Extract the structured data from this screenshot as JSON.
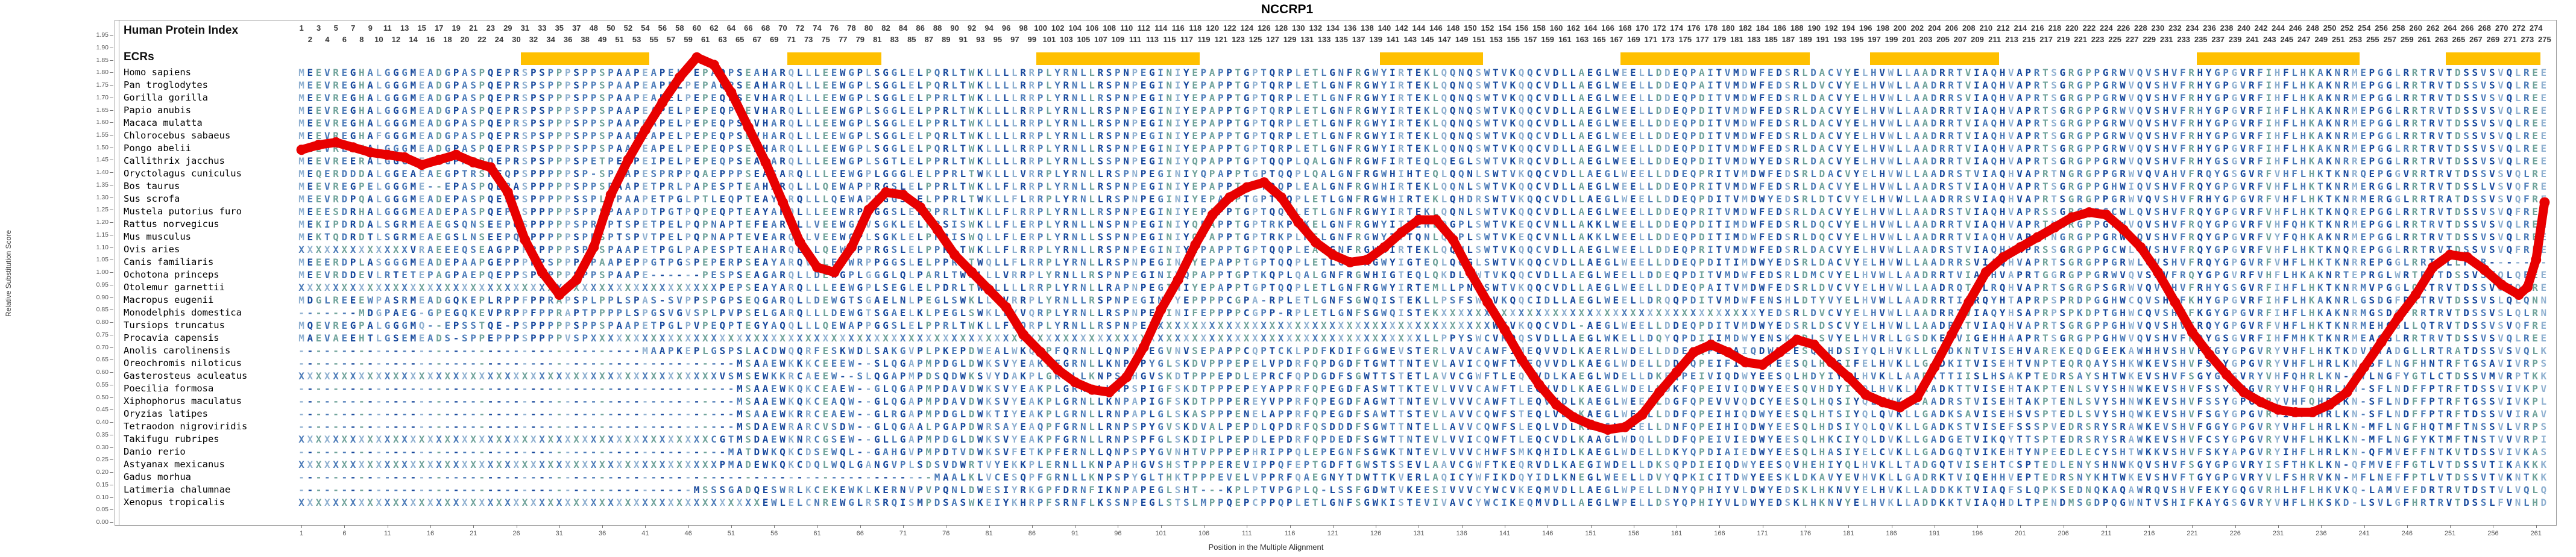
{
  "title": "NCCRP1",
  "labels": {
    "human_protein_index": "Human Protein Index",
    "ecrs": "ECRs",
    "y_axis": "Relative Substitution Score",
    "x_axis": "Position in the Multiple Alignment"
  },
  "ruler": {
    "index_segments": [
      [
        1,
        24
      ],
      [
        29,
        38
      ],
      [
        48,
        275
      ]
    ]
  },
  "ecr_regions_cols": [
    [
      27,
      41
    ],
    [
      58,
      68
    ],
    [
      87,
      105
    ],
    [
      127,
      138
    ],
    [
      155,
      176
    ],
    [
      184,
      198
    ],
    [
      222,
      240
    ],
    [
      251,
      261
    ]
  ],
  "colors": {
    "ecr_bar": "#FFC000",
    "curve": "#E80000",
    "residue_palette": [
      "#17489C",
      "#4C7BB8",
      "#8FB0D0",
      "#6FA29A"
    ],
    "ruler_text": "#3A3A3A",
    "axis_text": "#555555",
    "border": "#9A9A9A"
  },
  "species": [
    {
      "name": "Homo sapiens",
      "seq": "MEEVREGHALGGGMEADGPASPQEPRSPSPPPSPPSPAAPEAPELPEPAQPSEAHARQLLLEEWGPLSGGLELPQRLTWKLLLLRRPLYRNLLRSPNPEGINIYEPAPPTGPTQRPLETLGNFRGWYIRTEKLQQNQSWTVKQQCVDLLAEGLWEELLDDEQPAITVMDWFEDSRLDACVYELHVWLLAADRRTVIAQHVAPRTSGRGPPGRWVQVSHVFRHYGPGVRFIHFLHKAKNRMEPGGLRRTRVTDSSVSVQLREE"
    },
    {
      "name": "Pan troglodytes",
      "seq": "MEEVREGHALGGGMEADGPASPQEPRSPSPPPSPPSPAAPEAPELPEPAQPSEAHARQLLLEEWGPLSGGLELPQRLTWKLLLLRRPLYRNLLRSPNPEGINIYEPAPPTGPTQRPLETLGNFRGWYIRTEKLQQNQSWTVKQQCVDLLAEGLWEELLDDEQPAITVMDWFEDSRLDVCVYELHVWLLAADRRTVIAQHVAPRTSGRGPPGRWVQVSHVFRHYGPGVRFIHFLHKAKNRMEPGGLRRTRVTDSSVSVQLREE"
    },
    {
      "name": "Gorilla gorilla",
      "seq": "MEEVREGHALGGGMEADGPASPQEPRSPSPPPSPPSPAAPEAPELPEPEQPSEVHARQLLLEEWGPLSGGLELPPRLTWKLLLLRRPLYRNLLRSPNPEGINIYEPAPPTGPTQRPLETLGNFRGWYIRTEKLQQNQSWTVKQQCVDLLAEGLWEELLDDEQPDITVMDWFEDSRLDACVYELHVWLLAADRRSVIAQHVAPRTSGRGPPGRWVQVSHVFRHYGPGVRFIHFLHKAKNRMEPGGLRRTRVTDSSVSVQLREE"
    },
    {
      "name": "Papio anubis",
      "seq": "MEEVREGHALGGGMEADGPASPQEPRSPSPPPSPPSPAAPEAPELPEPEQPSEVHARQLLLEEWGPLSGGLELPPRLTWKLLLLRRPLYRNLLRSPNPEGINIYEPAPPTGPTQRPLETLGNFRGWYIRTEKLQQNQSWTVKQQCVDLLAEGLWEELLDDEQPDITVMDWFEDSRLDACVYELHVWLLAADRRTVIAQHVAPRTSGRGPPGRWVQVSHVFRHYGPGVRFIHFLHKAKNRMEPGGLRRTRVTDSSVSVQLREE"
    },
    {
      "name": "Macaca mulatta",
      "seq": "MEEVREGHALGGGMEADGPASPQEPRSPSPPPSPPSPAAPEAPELPEPEQPSEVHARQLLLEEWGPLSGGLELPPRLTWKLLLLRRPLYRNLLRSPNPEGINIYEPAPPTGPTQRPLETLGNFRGWYIRTEKLQQNQSWTVKQQCVDLLAEGLWEELLDDEQPDITVMDWFEDSRLDACVYELHVWLLAADRRTVIAQHVAPRTSGRGPPGRWVQVSHVFRHYGPGVRFIHFLHKAKNRMEPGGLRRTRVTDSSVSVQLREE"
    },
    {
      "name": "Chlorocebus sabaeus",
      "seq": "MEEVREGHAFGGGMEADGPASPQEPRSPSPPPSPPSPAAPEAPELPEPEQPSEVHARQLLLEEWGPLSGGLELPQRLTWKLLLLRRPLYRNLLRSPNPEGINIYEPAPPTGPTQRPLETLGNFRGWYIRTEKLQQNQSWTVKQQCVDLLAEGLWEELLDDEQPDITVMDWFEDSRLDACVYELHVWLLAADRRTVIAQHVAPRTSGRGPPGRWVQVSHVFRHYGPGVRFIHFLHKAKNRMEPGGLRRTRVTDSSVSVQLREE"
    },
    {
      "name": "Pongo abelii",
      "seq": "MEEVREGHALGGGMEADGPASPQEPRSPSPPPSPPSPAAPEAPELPEPEQPSEAHARQLLLEEWGPLSGGLELPQRLTWKLLLLRRPLYRNLLRSPNPEGINIYEPAPPTGPTQRPLETLGNFRGWYIRTEKLQQNQSWTVKQQCVDLLAEGLWEELLDDEQPDITVMDWFEDSRLDACVYELHVWLLAADRRTVIAQHVAPRTSGRGPPGRWVQVSHVFRHYGPGVRFIHFLHKAKNRMEPGGLRRTRVTDSSVSVQLREE"
    },
    {
      "name": "Callithrix jacchus",
      "seq": "MEEVREERALGGGMEADGPANPQEPRSPSPPPSPETPEIPEIPELPEPEQPSEAHARQLLLEEWGPLSGTLELPPRLTWKLLLLRRPLYRNLLSSPNPEGINIYQPAPPTGPTQQPLQALGNFRGWFIRTEQLQEGLSWTVKRQCVDLLAEGLWEELLDDEQPDITVMDWYEDSRLDACVYELHVWLLAADRRTVIAQHVAPRTSGRGPPGRWVQVSHVFRHYGSGVRFIHFLHKAKNRREPGGLRRTRVTDSSVSVQLREE"
    },
    {
      "name": "Oryctolagus cuniculus",
      "seq": "MEQERDDDALGGEAEAEGPTRSPEQPSPPPPPSP-SPAAPESPRPPQAEPPPSEASARQLLLEEWGPLGGGLELPPRLTWKLLLVRRPLYRNLLRSPNPEGINIYQPAPPTGPTQQPLQALGNFRGWHIHTEQLQQNLSWTVKQQCVDLLAEGLWEELLDDEQPRITVMDWFEDSRLDACVYELHVWLLAADRSTVIAQHVAPRTNGRGPPGRWVQVAHVFRQYGSGVRFVHFLHKTKNRQEPGGVRRTRVTDSSVSVQLRE"
    },
    {
      "name": "Bos taurus",
      "seq": "MEEVREGPELGGGME--EPASPQEPASPPPPPSPPSPAAPETPRLPAPESPTEAHARQLLLQEWAPPRGSLELPPRLTWKLLFLRRPLYRNLLRSPNPEGINIYEPAPPTGPTQQPLEALGNFRGWHIRTEKLQQNLSWTVKQQCVDLLAEGLWEELLDDEQPRITVMDWFEDSRLDACVYELHVWLLAADRSTVIAQHVAPRTSGRGPPGHWIQVSHVFRQYGPGVRFVHFLHKTKNRMERGGLRRTRVTDSSLVSVQFRE"
    },
    {
      "name": "Sus scrofa",
      "seq": "MEEVRDPQALGGGMEADEPASPQEPPSPPPPPSSPLAPAAPETPGLPTLEQPTEAYARQLLLQEWAPPGGSLELPPRLTWKLLFLRRPLYRNLLRSPNPEGINIYEPAPPTGPTQQPLETLGNFRGWHIRTEKLQHDRSWTVKQQCVDLLAEGLWEELLDDEQPDITVMDWYEDSRLDTCVYELHVWLLAADRRSVIAQHVAPRTSGRGPPGRWVQVSHVFRHYGPGVRFVHFLHKTKNRMERGGLRRTRATDSSVSVQFRE"
    },
    {
      "name": "Mustela putorius furo",
      "seq": "MEEESDRHALGGGMEADEPASPQEPPSPPPPPSPPSPAAPDTPGTPQPEQPTEAYARQLLLEEWRPPGGSLELPPRLTWKLLFLRRPLYRNLLRSPNPEGINIYEPAPPTGPTQQPLETLGNFRGWYIRTEKLQQNLSWTVKQQCVDLLAEGLWEELLDDEQPRITVMDWFEDSRLDACVYELHVWLLAADRSTVIAQHVAPRSSGRGPPGCWLQVSHVFRQYGPGVRFVHFLHKTKNQREPGGLRRTRVTDSSVSVQFRE"
    },
    {
      "name": "Rattus norvegicus",
      "seq": "MEKIPDRDALSGRMEAEGSQNSEEPQSPPPPPSPRSPTSPETPELPQPNAPTEFEARQLLVEEWGPVSGKLELPPSISWKLLFLERPLYRNLLNSPNPEGINIYQPAPPTGPTRKPLKELGNFRGWYITTENLQGPLSWTVKEQCVNLLAKKLWEELLDDEQPDITIMDWFEDSRLDQCVYELHVWLLAADRRTVIAQHVAPRTNGRGPPGRWVQVSHVFRQYGPGVRFVHFQHKTKNRMEPGGLRRTRVTDSSVSVQLRE"
    },
    {
      "name": "Mus musculus",
      "seq": "MEKTQDRDTLSGRMEAEGSLNSEEPQSPPPPPSPRSPTSPVTPELPQPNAPTEVEARQLLVEEWGPLSGKLELPPRISWQLLFLERPLYRNLLSSPNPEGINIYQPAPPTGPTRKPLKELGNFRGWYITTQNLQGPLSWTVKEQCVNLLAKKLWEELLDDEQPDITIMDWFEDSRLDQCVYELHVWLLAADRRTVIAQHVAPRTNGRGPPGRWIQVSHVFRQYGPGVRFVYFQHKAKNRMEPGGLRRTRVTDSSVSVQLRE"
    },
    {
      "name": "Ovis aries",
      "seq": "XXXXXXXXXXXXXVRAEEEQSEAGPPPPPPPPSPPSPAAPETPGLPAPESPTEAHARQLLLQEWAPPRGSLELPPRLTWKLLFLRRPLYRNLLRSPNPEGINIYEPAPPTGPTQQPLEALGNFRGWHIRTEKLQQNLSWTVKQQCVDLLAEGLWEELLDDEQPRITVMDWFEDSRLDACVYELHVWLLAADRSTVIAQHVAPRSSGRGPPGCWLQVSHVFRQYGPGVRFVHFLHKTKNQREPGGLRRTRVTDSSVSVQFRE"
    },
    {
      "name": "Canis familiaris",
      "seq": "MEEERDPLASGGGMEADEPAAPGEPPPPPSPPPSPAAPEPPGTPGSPEPERPSEAYARQVLLEEWRPPGGSLELPPRLTWQLLFLRRPLYRNLLRSPNPEGINIYEPAPPTGPTQQPLETLGNFRGWYIGTEQLQQGLSWTVKQQCVDLLAEGLWEELLDDEQPDITIMDWYEDSRLDACVYELHVWLLAADRRSVIAQHVAPRTSGRGPPGRWLQVSHVFRQYGPGVRFVHFLHKTKNRREPGGLRRTRLLFGR-------"
    },
    {
      "name": "Ochotona princeps",
      "seq": "MEEVRDDEVLRTETEPAGPAEPQEPPSPPPPPSPPSPAAPE------PESPSEAGARQLLDEWGPLGGGLQLPARLTWKLLLVRRPLYRNLLRSPNPEGINIYQPAPPTGPTKQPLQALGNFRGWHIGTEQLQKDLSWTVKQQCVDLLAEGLWEELLDDEQPDITVMDWFEDSRLDMCVYELHVWLLAADRRTVIAQHVAPRTGGRGPPGRWVQVSHVFRQYGPGVRFVHFLHKAKNRTEPRGLWRTRVTDSSVSVQLQE"
    },
    {
      "name": "Otolemur garnettii",
      "seq": "XXXXXXXXXXXXXXXXXXXXXXXXXXXXXXXXXXXXXXXXXXXXXXXXXPEPSEAYARQLLLEEWGPLSEGLELPDRLTWKLLLLRRPLYRNLLRAPNPEGINIYEPAPPTGPTQQPLETLGNFRGWYIRTEMLLPNFSWTVKQQCVDLLAEGLWEELLDDEQPAITVMDWFEDSRLDVCVYELHVWLLAADRQTVLRQHVAPRTSGRGPSGRWVQVSHVFRHYGSGVRFIHFLHKTKNRMVPGGLQRTRVTDSSVSVQLRE"
    },
    {
      "name": "Macropus eugenii",
      "seq": "MDGLREEEWPASRMEADGQKEPLRPPFPPRAPSPLPPLSPAS-SVPPSPGPSEQGARQLLDEWGTSGAELNLPEGLSWKLLYVRRPLYRNLLRSPNPEGINTYEPPPPCGPA-RPLETLGNFSGWQISTEKLLPSFSWTVKQQCIDLLAEGLWEELLDRQQPDITVMDWFENSHLDTYVYELHVWLLAADRRTIIRQYHTAPRPSPRDPGGHWCQVSHVFKHYGPGVRFIHFLHKAKNRLGSDGFRRTRVTDSSVSLQLQN"
    },
    {
      "name": "Monodelphis domestica",
      "seq": "-------MDGPAEG-GPEGQKEVPRPPFPPRAPTPPPPLSPGSVGVSPLPVPSELGARQLLLDEWGTSGAELKLPEGLSWKLLYVQRPLYRNLLRSPNPEGINIFEPPPPCGPP-RPLETLGNFSGWQISTEKXXXXXXXXXXXXXXXXXXXXXXXXXXXXXXXXXXXXXYEDSRLDVCVYELHVWLLAADRRTVIAQYHSAPRPSPKDPTGHWCQVSHVFKGYGPGVRFIHFLHKAKNRMGSDGFRRTRVTDSSVSLQLRN"
    },
    {
      "name": "Tursiops truncatus",
      "seq": "MQEVREGPALGGGMQ--EPSSTQE-PSPPPPPSPPSPAAPETPGLPVPEQPTEGYAQQLLLQEWAPPGGSLELPPRLTWKLLFLQRPLYRNLLRSPNPEXXXXXXXXXXXXXXXXXXXXXXXXXXXXXXXXXXXXXXXXWTVKQQCVDL-AEGLWEELLDDEQPDITVMDWYEDSRLDSCVYELHVWLLAADRRTVIAQHVAPRTSGRGPPGHWVQVSHVFRQYGPGVRFVHFLHKTKNRMEHGGLLQTRVTDSSVSVQFRE"
    },
    {
      "name": "Procavia capensis",
      "seq": "MAEVAEEHTLGSEMEADS-SPPEPPPSPPPPVSPXXXXXXXXXXXXXXXXXXXXXXXXXXXXXXXXXXXXXXXXXXXXXXXXXXXXXXXXXXXXXXXXXXXXXXXXXXXXXXXXXXXXXXXXXXXXXXXXXLLPPYSWCVKQQSVDLLAEGLWKELLDQYQPDITIMDWYENSKLDLSVYELHVRLLGSDKEAVIGEHHAAPRTSGRGPPGHWVQVSHVFRQYGSGVRFIHFMHKTKNRMEAGGLRRTRVTDSSVSVQLRE"
    },
    {
      "name": "Anolis carolinensis",
      "seq": "----------------------------------------MAAPKEPLGSPSLACDWQQRFESKWDLSAKGVPLPKEPDWEALWKQKPFQRNLLQNPNPEGVNVSEPAPPCQPTCKLPDFKDIFGGWEVSTERLVAVCAWFIMEQVVDLKAERLWDELLDDEFQPEIAIQDWYEESQLHDSIYQLHVKLLGADKNTVISEHVAREKEQDGEEKAWHHVSHVFKGYGPGVRYVHFLHKTKDVETADGLLRTRATDSSVSVQLKD"
    },
    {
      "name": "Oreochromis niloticus",
      "seq": "---------------------------------------------------MSAAEWKKKCEEEW--SLQGAPMPDGLDWKSVYEAKPFGRNLLKNPAPYGLSKDVPPPEPELVPDRFQPDGDFTGWTTNTEVLAVICQWFTMEQVVDLKAEGLWDELLDDFQPEIFIQDWYEESQLHKSIFELHVKLLGADKITVISEHTVNPTEQRQAYSHKWKEVSHVFSGYGPGVRYVHFLHRLKN-SFLNGFHNTRFTGSAVIVRPSK"
    },
    {
      "name": "Gasterosteus aculeatus",
      "seq": "XXXXXXXXXXXXXXXXXXXXXXXXXXXXXXXXXXXXXXXXXXXXXXXXXVSMSEWKKRCAEEW--SLQGAPMPDSQDWKSVYDAKPLGRNLLKNPSPHGVSKDTPPPEPDLEPRCFQPDGDFSGWTTSTETLAVVCGWFTLEQVVDLKAEGLWDELLDKFQPEIVIQDWYEESQLHDYIYELHVKLLAADKTTIISLHSAKPTEDRSAYSHTWKEVSHVFSGYGPGVRYVHFQHRLKN-QYLNGFYGTLCTDSSVMVRPTK"
    },
    {
      "name": "Poecilia formosa",
      "seq": "---------------------------------------------------MSAAEWKQKCEAEW--GLQGAPMPDAVDWKSVYEAKPLGRNLLKNPSPIGFSKDTPPPEPEYAPPRFQPEGDFASWTTKTEVLVVVCAWFTLEQVVDLKAEGLWDELLDKFQPEIVIQDWYEESQVHDYIYQLHVKLLAADKTTVISEHTAKPTENLSVYSHNWKEVSHVFSSYGPGVRYVHFQHRLKN-SFLNDFFPTRFTDSSVIVKPVR"
    },
    {
      "name": "Xiphophorus maculatus",
      "seq": "---------------------------------------------------MSAAEWKQKCEAQW--GLQGAPMPDAVDWKSVYEAKPLGRNLLKNPAPIGFSKDTPPPEREYVPPRFQPEGDFAGWTTNTEVLVVVCAWFTLEQVVDLKAEGLWEELLDGFQPEVVVQDCYEESQLHQSIYQLQVKLLAADRSTVISEHTAKPTENLSVYSHNWKEVSHVFSSYGPGVRYVHFQHRLKN-SFLNDFFPTRFTGSSVIVKPLK"
    },
    {
      "name": "Oryzias latipes",
      "seq": "---------------------------------------------------MSAAEWKRRCEAEW--GLRGAPMPDGLDWKTIYEAKPLGRNLLRNPAPLGLSKASPPPENELAPPRFQPEGDFSAWTTSTEVLAVVCQWFSTEQLVDLKAEGLWEELLDDFQPEIHIQDWYEESQLHTSIYQLQVKLLGADKSAVISEHSVSPTEDLSVYSHQWKEVSHVFSGYGPGVRYIHFLHRLKN-SFLNDFFPTRFTDSSVVIRAVR"
    },
    {
      "name": "Tetraodon nigroviridis",
      "seq": "---------------------------------------------------MSDAEWRARCVSDW--GLQGAALPGAPDWRSAYEAQPFGRNLLRNPSPYGVSKDVALPEPDLQPDRFQSDDDFSGWTTNTELLAVVCQWFSLEQLVDLKAEGLWEELLDNFQPEIHIQDWYEESQLHDSIYQLQVKLLGADKSTVISEFSSSPVEDRSRYSRAWKEVSHVFGGYGPGVRYVHFLHRLKN-MFLNGFHQTMFTNSSVLVRPSR"
    },
    {
      "name": "Takifugu rubripes",
      "seq": "XXXXXXXXXXXXXXXXXXXXXXXXXXXXXXXXXXXXXXXXXXXXXXXXCGTMSDAEWKNRCGSEW--GLLGAPMPDGLDWKSVYEAKPFGRNLLRNPSPFGLSKDIPLPEPDLEPDRFQPDEDFSGWTTNTEVLVVICQWFTLEQCVDLKAAGLWDQLLDDFQPEIVIEDWYEESQLHKCIYQLDVKLLGADGETVIKQYTTSPTEDRSRYSRAWKEVSHVFCSYGPGVRYVHFLHKLKN-MFLNGFYKTMFTNSTVVVRPIC"
    },
    {
      "name": "Danio rerio",
      "seq": "--------------------------------------------------MATDWKQKCDSEWQL--GAHGVPMPDTVDWKSVFETKPFERNLLQNPSPYGVNHTVPPPEPHRIPPQLEPEGNFSGWKTNTEVLVVVCHWFSMKQHIDLKAEGLWDELLDKYQPDIAIEDWYEESQLHASIYELCVKLLGADGQTVIKEHTYNPEEDLECYSHTWKKVSHVFSKYAPGVRYIHFLHRLKN-QFMVEFFNTKVTDSSVIVKASK"
    },
    {
      "name": "Astyanax mexicanus",
      "seq": "XXXXXXXXXXXXXXXXXXXXXXXXXXXXXXXXXXXXXXXXXXXXXXXXXPMADEWKQKCDQLWQLGANGVPLSDSVDWRTVYEKKPLERNLLKNPAPHGVSHSTPPPEREVIPPQFEPTGDFTGWSTSSEVLAAVCGWFTKEQRVDLKAEGIWDELLDKSQPDIEIQDWYEESQVHEHIYQLHVKLLTADGQTVISEHTCSPTEDLENYSHNWKQVSHVFSGYGPGVRYISFTHKLKN-QFMVEFFGTLVTDSSVTIKAKK"
    },
    {
      "name": "Gadus morhua",
      "seq": "--------------------------------------------------------------------------MAALKLVCESQPFGRNLLKNPSPYGLTHKTPPPEVELVPPRFQAEGNYTDWTTKVERLAQICYWFIKDQYIDLKNEGLWEELLDVYQPKICITDWYEESKLDKAVYEVHVKLLGADRKTVIQEHHVEPTEDRSNYKHTWKEVSHVFTGYGPGVRYVLFSHRVKN-MFLNEFFPTLVTDSSVTVKNTK"
    },
    {
      "name": "Latimeria chalumnae",
      "seq": "----------------------------------------------MSSSGADQESWRLKCEKEWKLKERNVPVPQNLDWESIYRKGPFDRNFIKNPAPEGLSHT---KPLPTVPGPLQ-LSSFGDWTVKEESIVVVCYWCVKEQMVDLLAEGLWPELLDNYQPHIYVLDWYEDSKLHKNVYELHVKLLADDKKTVIAQFSLQPKSEDNQKAQAWRQVSHVFEKYGQGVRHLHFLHKVKQ-LAMVEFDRTRVTDSTVLVQLQN"
    },
    {
      "name": "Xenopus tropicalis",
      "seq": "XXXXXXXXXXXXXXXXXXXXXXXXXXXXXXXXXXXXXXXXXXXXXXXXXXXXXXEWLELCNREWGLRSRQISMPDSASWKEIYKHRPFSRNFLKSSNPEGLSTSLMPPQEPCPPQPLETLGNFSGWKISTEVIVAVCYWCIKEQMVDLLAEGLWPELLDSYQPHIYVLDWYEDSKLHKNVYELHVKLLADDKKTVIAQHDLTPENDMSGDPQGWNTVSHIFKAYGSGVRYVHFLHKSKD-LSVLGFHRTRVTDSSLFVNLHD"
    }
  ],
  "chart_data": {
    "type": "line",
    "title": "NCCRP1",
    "xlabel": "Position in the Multiple Alignment",
    "ylabel": "Relative Substitution Score",
    "ylim": [
      0.0,
      1.95
    ],
    "y_tick_step": 0.05,
    "x_ticks": {
      "start": 1,
      "step": 5,
      "end": 261
    },
    "n_columns": 262,
    "grid": false,
    "legend": "none",
    "points": [
      [
        1,
        1.49
      ],
      [
        3,
        1.51
      ],
      [
        5,
        1.52
      ],
      [
        7,
        1.5
      ],
      [
        9,
        1.48
      ],
      [
        11,
        1.47
      ],
      [
        13,
        1.46
      ],
      [
        15,
        1.43
      ],
      [
        17,
        1.45
      ],
      [
        19,
        1.47
      ],
      [
        21,
        1.44
      ],
      [
        23,
        1.42
      ],
      [
        25,
        1.32
      ],
      [
        27,
        1.13
      ],
      [
        29,
        1.0
      ],
      [
        31,
        0.91
      ],
      [
        33,
        0.97
      ],
      [
        35,
        1.1
      ],
      [
        37,
        1.31
      ],
      [
        39,
        1.45
      ],
      [
        41,
        1.57
      ],
      [
        43,
        1.68
      ],
      [
        45,
        1.78
      ],
      [
        47,
        1.86
      ],
      [
        49,
        1.83
      ],
      [
        51,
        1.72
      ],
      [
        53,
        1.58
      ],
      [
        55,
        1.44
      ],
      [
        57,
        1.28
      ],
      [
        59,
        1.12
      ],
      [
        61,
        1.02
      ],
      [
        63,
        1.0
      ],
      [
        65,
        1.1
      ],
      [
        67,
        1.25
      ],
      [
        69,
        1.32
      ],
      [
        71,
        1.31
      ],
      [
        73,
        1.26
      ],
      [
        75,
        1.17
      ],
      [
        77,
        1.07
      ],
      [
        79,
        1.0
      ],
      [
        81,
        0.93
      ],
      [
        83,
        0.86
      ],
      [
        85,
        0.75
      ],
      [
        87,
        0.68
      ],
      [
        89,
        0.61
      ],
      [
        91,
        0.56
      ],
      [
        93,
        0.53
      ],
      [
        95,
        0.52
      ],
      [
        97,
        0.58
      ],
      [
        99,
        0.7
      ],
      [
        101,
        0.85
      ],
      [
        103,
        0.97
      ],
      [
        105,
        1.11
      ],
      [
        107,
        1.23
      ],
      [
        109,
        1.3
      ],
      [
        111,
        1.34
      ],
      [
        113,
        1.36
      ],
      [
        115,
        1.3
      ],
      [
        117,
        1.2
      ],
      [
        119,
        1.12
      ],
      [
        121,
        1.07
      ],
      [
        123,
        1.04
      ],
      [
        125,
        1.05
      ],
      [
        127,
        1.1
      ],
      [
        129,
        1.16
      ],
      [
        131,
        1.21
      ],
      [
        133,
        1.21
      ],
      [
        135,
        1.13
      ],
      [
        137,
        1.0
      ],
      [
        139,
        0.88
      ],
      [
        141,
        0.77
      ],
      [
        143,
        0.65
      ],
      [
        145,
        0.55
      ],
      [
        147,
        0.47
      ],
      [
        149,
        0.42
      ],
      [
        151,
        0.39
      ],
      [
        153,
        0.37
      ],
      [
        155,
        0.38
      ],
      [
        157,
        0.43
      ],
      [
        159,
        0.52
      ],
      [
        161,
        0.6
      ],
      [
        163,
        0.68
      ],
      [
        165,
        0.71
      ],
      [
        167,
        0.68
      ],
      [
        169,
        0.64
      ],
      [
        171,
        0.63
      ],
      [
        173,
        0.68
      ],
      [
        175,
        0.73
      ],
      [
        177,
        0.71
      ],
      [
        179,
        0.64
      ],
      [
        181,
        0.58
      ],
      [
        183,
        0.51
      ],
      [
        185,
        0.48
      ],
      [
        187,
        0.46
      ],
      [
        189,
        0.5
      ],
      [
        191,
        0.62
      ],
      [
        193,
        0.75
      ],
      [
        195,
        0.88
      ],
      [
        197,
        1.0
      ],
      [
        199,
        1.06
      ],
      [
        201,
        1.1
      ],
      [
        203,
        1.14
      ],
      [
        205,
        1.18
      ],
      [
        207,
        1.22
      ],
      [
        209,
        1.24
      ],
      [
        211,
        1.23
      ],
      [
        213,
        1.17
      ],
      [
        215,
        1.1
      ],
      [
        217,
        1.0
      ],
      [
        219,
        0.88
      ],
      [
        221,
        0.76
      ],
      [
        223,
        0.67
      ],
      [
        225,
        0.59
      ],
      [
        227,
        0.52
      ],
      [
        229,
        0.48
      ],
      [
        231,
        0.45
      ],
      [
        233,
        0.44
      ],
      [
        235,
        0.44
      ],
      [
        237,
        0.47
      ],
      [
        239,
        0.52
      ],
      [
        241,
        0.62
      ],
      [
        243,
        0.72
      ],
      [
        245,
        0.82
      ],
      [
        247,
        0.91
      ],
      [
        249,
        1.02
      ],
      [
        251,
        1.07
      ],
      [
        253,
        1.06
      ],
      [
        255,
        1.01
      ],
      [
        257,
        0.95
      ],
      [
        259,
        0.91
      ],
      [
        260,
        0.94
      ],
      [
        261,
        1.05
      ],
      [
        262,
        1.28
      ]
    ]
  }
}
